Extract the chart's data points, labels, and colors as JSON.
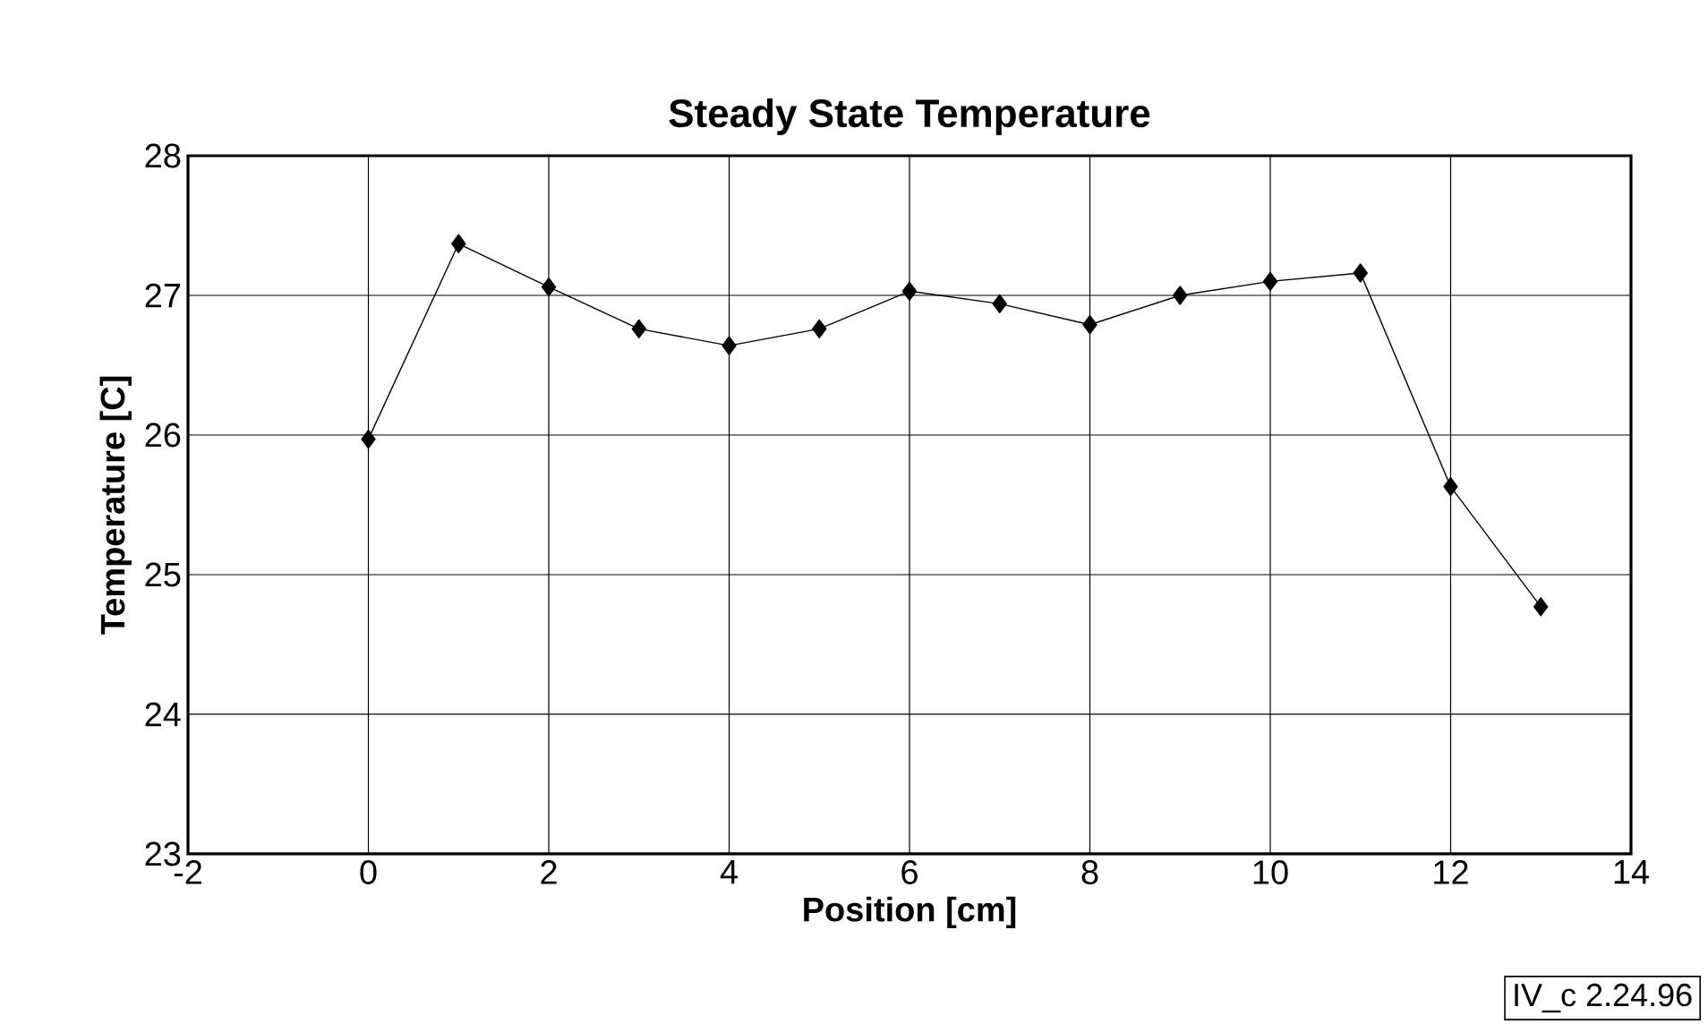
{
  "chart_data": {
    "type": "line",
    "title": "Steady State Temperature",
    "xlabel": "Position [cm]",
    "ylabel": "Temperature [C]",
    "x": [
      0,
      1,
      2,
      3,
      4,
      5,
      6,
      7,
      8,
      9,
      10,
      11,
      12,
      13
    ],
    "values": [
      25.97,
      27.37,
      27.06,
      26.76,
      26.64,
      26.76,
      27.03,
      26.94,
      26.79,
      27.0,
      27.1,
      27.16,
      25.63,
      24.77
    ],
    "color": "#000000",
    "marker": "diamond",
    "line_style": "solid",
    "xlim": [
      -2,
      14
    ],
    "xticks": [
      -2,
      0,
      2,
      4,
      6,
      8,
      10,
      12,
      14
    ],
    "ylim": [
      23,
      28
    ],
    "yticks": [
      23,
      24,
      25,
      26,
      27,
      28
    ],
    "grid": true,
    "legend": false,
    "annotations": [
      "IV_c 2.24.96"
    ]
  }
}
